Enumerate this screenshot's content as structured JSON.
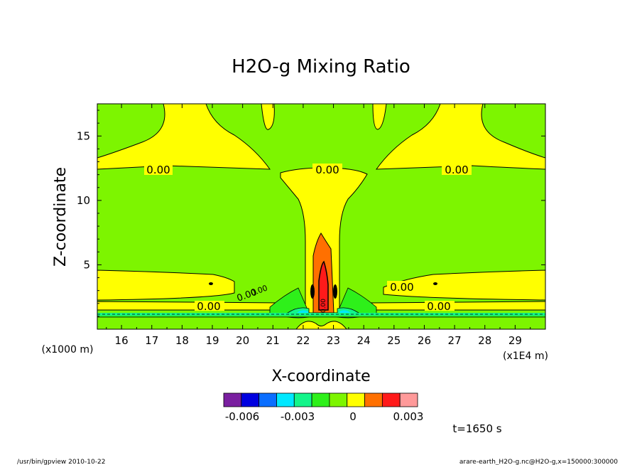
{
  "chart_data": {
    "type": "contour",
    "title": "H2O-g Mixing Ratio",
    "xlabel": "X-coordinate",
    "ylabel": "Z-coordinate",
    "x_unit": "(x1E4 m)",
    "y_unit": "(x1000 m)",
    "xlim": [
      15.2,
      30
    ],
    "ylim": [
      0,
      17.5
    ],
    "x_ticks": [
      "16",
      "17",
      "18",
      "19",
      "20",
      "21",
      "22",
      "23",
      "24",
      "25",
      "26",
      "27",
      "28",
      "29"
    ],
    "y_ticks": [
      "5",
      "10",
      "15"
    ],
    "contour_labels": [
      "0.00",
      "0.00",
      "0.00",
      "0.00",
      "0.00",
      "0.00",
      "0.00",
      "0.00",
      "0.00"
    ],
    "colorbar": {
      "colors": [
        "#7a1fa0",
        "#0000e0",
        "#0a6eff",
        "#00e8ff",
        "#13f58a",
        "#2ef01a",
        "#7df500",
        "#ffff00",
        "#ff7000",
        "#ff1a1a",
        "#ff9a9a"
      ],
      "tick_labels": [
        "-0.006",
        "-0.003",
        "0",
        "0.003"
      ],
      "tick_values": [
        -0.006,
        -0.003,
        0,
        0.003
      ],
      "range": [
        -0.007,
        0.0035
      ]
    }
  },
  "annotations": {
    "time": "t=1650 s",
    "footer_left": "/usr/bin/gpview   2010-10-22",
    "footer_right": "arare-earth_H2O-g.nc@H2O-g,x=150000:300000"
  }
}
